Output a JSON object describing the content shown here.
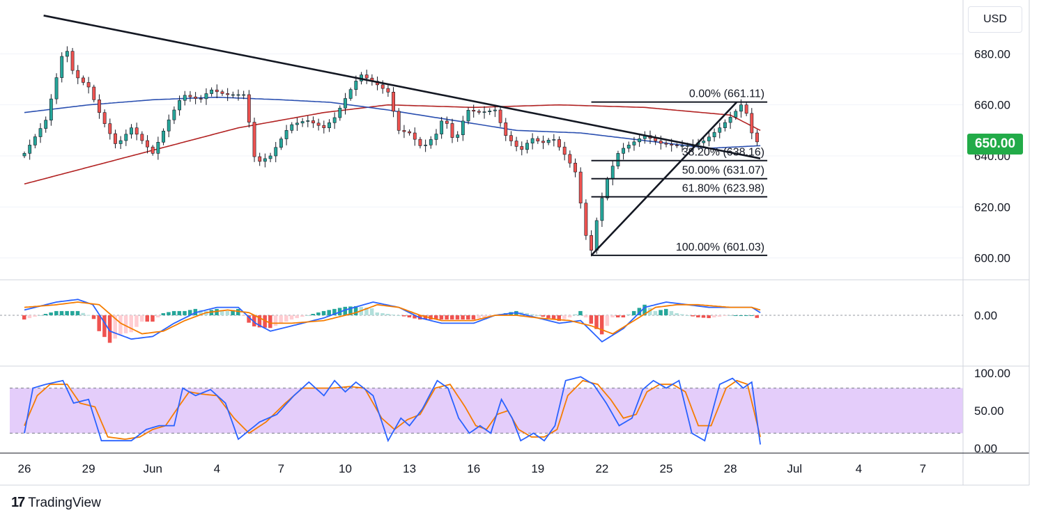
{
  "currency": "USD",
  "last_price_label": "650.00",
  "brand": {
    "logo_text": "17",
    "name": "TradingView"
  },
  "colors": {
    "up": "#26a69a",
    "down": "#ef5350",
    "ma_red": "#b22222",
    "ma_blue": "#2a4fb0",
    "price_tag": "#22ab48",
    "macd_line": "#2962ff",
    "signal_line": "#f57c00",
    "hist_up_strong": "#26a69a",
    "hist_up_weak": "#b2dfdb",
    "hist_down_strong": "#ef5350",
    "hist_down_weak": "#ffcdd2",
    "stoch_band": "#e1c8fa"
  },
  "chart_data": {
    "type": "candlestick",
    "price_axis": {
      "min": 592,
      "max": 700,
      "ticks": [
        600,
        620,
        640,
        660,
        680
      ]
    },
    "price_tick_labels": [
      "600.00",
      "620.00",
      "640.00",
      "660.00",
      "680.00"
    ],
    "x_tick_labels": [
      "26",
      "29",
      "Jun",
      "4",
      "7",
      "10",
      "13",
      "16",
      "19",
      "22",
      "25",
      "28",
      "Jul",
      "4",
      "7"
    ],
    "x_tick_index": [
      0,
      3,
      6,
      9,
      12,
      15,
      18,
      21,
      24,
      27,
      30,
      33,
      36,
      39,
      42
    ],
    "num_days": 37,
    "anchors": [
      [
        0,
        641
      ],
      [
        1,
        654
      ],
      [
        1.9,
        684
      ],
      [
        2.3,
        672
      ],
      [
        3,
        667
      ],
      [
        3.6,
        655
      ],
      [
        4.3,
        644
      ],
      [
        5,
        651
      ],
      [
        6,
        641
      ],
      [
        6.8,
        655
      ],
      [
        7.4,
        664
      ],
      [
        8.2,
        662
      ],
      [
        8.7,
        666
      ],
      [
        9.4,
        664
      ],
      [
        10.3,
        664
      ],
      [
        10.8,
        637
      ],
      [
        11.5,
        640
      ],
      [
        12.4,
        652
      ],
      [
        13.2,
        654
      ],
      [
        14,
        651
      ],
      [
        14.5,
        655
      ],
      [
        15.1,
        664
      ],
      [
        15.7,
        672
      ],
      [
        16.3,
        669
      ],
      [
        17,
        665
      ],
      [
        17.5,
        650
      ],
      [
        18,
        649
      ],
      [
        18.6,
        643
      ],
      [
        19.3,
        649
      ],
      [
        19.6,
        656
      ],
      [
        20.1,
        645
      ],
      [
        20.7,
        658
      ],
      [
        21.3,
        657
      ],
      [
        22,
        658
      ],
      [
        22.5,
        648
      ],
      [
        23.2,
        642
      ],
      [
        23.7,
        647
      ],
      [
        24.2,
        645
      ],
      [
        24.7,
        647
      ],
      [
        25.3,
        640
      ],
      [
        25.8,
        633
      ],
      [
        26.2,
        610
      ],
      [
        26.5,
        603
      ],
      [
        26.8,
        617
      ],
      [
        27.2,
        630
      ],
      [
        27.8,
        642
      ],
      [
        28.2,
        644
      ],
      [
        29,
        648
      ],
      [
        29.7,
        645
      ],
      [
        30.4,
        644
      ],
      [
        31.1,
        644
      ],
      [
        31.8,
        646
      ],
      [
        32.5,
        651
      ],
      [
        33.1,
        656
      ],
      [
        33.5,
        660
      ],
      [
        33.8,
        656
      ],
      [
        34,
        649
      ],
      [
        34.2,
        644
      ],
      [
        34.4,
        650
      ]
    ],
    "moving_averages": [
      {
        "name": "MA red",
        "color": "#b22222",
        "points": [
          [
            0,
            629
          ],
          [
            5,
            640
          ],
          [
            10,
            651
          ],
          [
            14,
            657
          ],
          [
            17,
            660
          ],
          [
            21,
            659
          ],
          [
            25,
            660
          ],
          [
            29,
            659
          ],
          [
            33,
            656
          ],
          [
            34.4,
            650
          ]
        ]
      },
      {
        "name": "MA blue",
        "color": "#2a4fb0",
        "points": [
          [
            0,
            657
          ],
          [
            3,
            660
          ],
          [
            6,
            662
          ],
          [
            9,
            663
          ],
          [
            12,
            662
          ],
          [
            14.3,
            661
          ],
          [
            17,
            658
          ],
          [
            20,
            654
          ],
          [
            23,
            650
          ],
          [
            26,
            649
          ],
          [
            29,
            646
          ],
          [
            32,
            643
          ],
          [
            34.4,
            644
          ]
        ]
      }
    ],
    "trendlines": [
      {
        "name": "descending trendline",
        "from": [
          0.9,
          695
        ],
        "to": [
          34.4,
          639
        ]
      },
      {
        "name": "ascending trendline",
        "from": [
          26.5,
          601.03
        ],
        "to": [
          33.3,
          661.11
        ]
      }
    ],
    "fibonacci": {
      "x_start": 26.5,
      "x_end": 34.4,
      "levels": [
        {
          "ratio_label": "0.00%",
          "value_label": "(661.11)",
          "price": 661.11
        },
        {
          "ratio_label": "38.20%",
          "value_label": "(638.16)",
          "price": 638.16
        },
        {
          "ratio_label": "50.00%",
          "value_label": "(631.07)",
          "price": 631.07
        },
        {
          "ratio_label": "61.80%",
          "value_label": "(623.98)",
          "price": 623.98
        },
        {
          "ratio_label": "100.00%",
          "value_label": "(601.03)",
          "price": 601.03
        }
      ]
    },
    "macd": {
      "zero_label": "0.00",
      "macd_anchors": [
        [
          0,
          2
        ],
        [
          1.5,
          5
        ],
        [
          2.5,
          6
        ],
        [
          3.2,
          4
        ],
        [
          4,
          -6
        ],
        [
          5,
          -9
        ],
        [
          6,
          -8
        ],
        [
          7,
          -3
        ],
        [
          8,
          1
        ],
        [
          9,
          3
        ],
        [
          10,
          3
        ],
        [
          10.8,
          -3
        ],
        [
          11.5,
          -6
        ],
        [
          12.5,
          -4
        ],
        [
          14,
          -1
        ],
        [
          15,
          2
        ],
        [
          16.3,
          5
        ],
        [
          17.5,
          3
        ],
        [
          18.5,
          -1
        ],
        [
          19.5,
          -3
        ],
        [
          21,
          -3
        ],
        [
          22,
          0
        ],
        [
          23,
          1
        ],
        [
          24,
          -1
        ],
        [
          25,
          -3
        ],
        [
          26,
          -2
        ],
        [
          27,
          -10
        ],
        [
          28,
          -5
        ],
        [
          29,
          3
        ],
        [
          30,
          5
        ],
        [
          31,
          4
        ],
        [
          32,
          3
        ],
        [
          33,
          3
        ],
        [
          34,
          3
        ],
        [
          34.4,
          1
        ]
      ],
      "signal_anchors": [
        [
          0,
          3
        ],
        [
          1.5,
          4
        ],
        [
          2.5,
          5
        ],
        [
          3.5,
          4
        ],
        [
          4.5,
          -3
        ],
        [
          5.5,
          -7
        ],
        [
          6.5,
          -6
        ],
        [
          7.5,
          -2
        ],
        [
          8.5,
          1
        ],
        [
          9.5,
          2
        ],
        [
          10.5,
          1
        ],
        [
          11.5,
          -3
        ],
        [
          12.5,
          -3
        ],
        [
          14,
          -2
        ],
        [
          15.5,
          1
        ],
        [
          16.5,
          4
        ],
        [
          17.5,
          3
        ],
        [
          18.5,
          0
        ],
        [
          19.5,
          -2
        ],
        [
          21,
          -2
        ],
        [
          22,
          0
        ],
        [
          23,
          0
        ],
        [
          24,
          -1
        ],
        [
          25.5,
          -2
        ],
        [
          26.5,
          -4
        ],
        [
          27.5,
          -7
        ],
        [
          28.5,
          -2
        ],
        [
          29.5,
          3
        ],
        [
          30.5,
          4
        ],
        [
          31.5,
          4
        ],
        [
          33,
          3
        ],
        [
          34,
          3
        ],
        [
          34.4,
          2
        ]
      ]
    },
    "stochastic": {
      "tick_labels": [
        "100.00",
        "50.00",
        "0.00"
      ],
      "ticks": [
        100,
        50,
        0
      ],
      "upper_band": 80,
      "lower_band": 20,
      "k_anchors": [
        [
          0,
          20
        ],
        [
          0.4,
          80
        ],
        [
          1,
          85
        ],
        [
          1.8,
          90
        ],
        [
          2.3,
          60
        ],
        [
          3,
          65
        ],
        [
          3.6,
          10
        ],
        [
          4.5,
          10
        ],
        [
          5,
          10
        ],
        [
          5.7,
          25
        ],
        [
          6.3,
          30
        ],
        [
          7,
          30
        ],
        [
          7.4,
          80
        ],
        [
          8,
          70
        ],
        [
          8.7,
          78
        ],
        [
          9.4,
          60
        ],
        [
          10,
          12
        ],
        [
          11,
          35
        ],
        [
          11.8,
          45
        ],
        [
          12.6,
          70
        ],
        [
          13.3,
          88
        ],
        [
          14,
          70
        ],
        [
          14.5,
          90
        ],
        [
          15,
          75
        ],
        [
          15.5,
          88
        ],
        [
          16.3,
          70
        ],
        [
          17,
          10
        ],
        [
          17.6,
          40
        ],
        [
          18,
          30
        ],
        [
          18.6,
          52
        ],
        [
          19.3,
          90
        ],
        [
          19.8,
          80
        ],
        [
          20.3,
          40
        ],
        [
          20.8,
          20
        ],
        [
          21.3,
          30
        ],
        [
          21.8,
          20
        ],
        [
          22.3,
          65
        ],
        [
          22.8,
          40
        ],
        [
          23.2,
          10
        ],
        [
          23.8,
          20
        ],
        [
          24.3,
          10
        ],
        [
          24.8,
          30
        ],
        [
          25.3,
          90
        ],
        [
          26,
          95
        ],
        [
          26.6,
          85
        ],
        [
          27.2,
          60
        ],
        [
          27.8,
          30
        ],
        [
          28.4,
          40
        ],
        [
          28.9,
          78
        ],
        [
          29.4,
          90
        ],
        [
          30,
          80
        ],
        [
          30.6,
          90
        ],
        [
          31.2,
          20
        ],
        [
          31.8,
          10
        ],
        [
          32.5,
          85
        ],
        [
          33.1,
          93
        ],
        [
          33.6,
          80
        ],
        [
          34,
          88
        ],
        [
          34.4,
          5
        ]
      ],
      "d_anchors": [
        [
          0,
          30
        ],
        [
          0.6,
          70
        ],
        [
          1.2,
          85
        ],
        [
          2,
          85
        ],
        [
          2.6,
          60
        ],
        [
          3.3,
          55
        ],
        [
          3.9,
          15
        ],
        [
          4.7,
          12
        ],
        [
          5.4,
          15
        ],
        [
          6,
          25
        ],
        [
          6.6,
          30
        ],
        [
          7.2,
          55
        ],
        [
          7.7,
          75
        ],
        [
          8.3,
          72
        ],
        [
          9,
          70
        ],
        [
          9.8,
          40
        ],
        [
          10.5,
          20
        ],
        [
          11.3,
          35
        ],
        [
          12.2,
          60
        ],
        [
          13,
          80
        ],
        [
          13.8,
          80
        ],
        [
          14.4,
          80
        ],
        [
          15.2,
          82
        ],
        [
          15.9,
          80
        ],
        [
          16.7,
          40
        ],
        [
          17.3,
          25
        ],
        [
          17.9,
          38
        ],
        [
          18.5,
          45
        ],
        [
          19.2,
          80
        ],
        [
          19.9,
          85
        ],
        [
          20.6,
          55
        ],
        [
          21.1,
          30
        ],
        [
          21.6,
          25
        ],
        [
          22.1,
          45
        ],
        [
          22.6,
          50
        ],
        [
          23.1,
          25
        ],
        [
          23.7,
          15
        ],
        [
          24.3,
          15
        ],
        [
          24.9,
          25
        ],
        [
          25.4,
          70
        ],
        [
          26.1,
          90
        ],
        [
          26.8,
          85
        ],
        [
          27.4,
          65
        ],
        [
          28,
          40
        ],
        [
          28.6,
          45
        ],
        [
          29.1,
          75
        ],
        [
          29.7,
          85
        ],
        [
          30.3,
          85
        ],
        [
          30.9,
          75
        ],
        [
          31.5,
          30
        ],
        [
          32.1,
          30
        ],
        [
          32.8,
          80
        ],
        [
          33.3,
          90
        ],
        [
          33.8,
          85
        ],
        [
          34.4,
          15
        ]
      ]
    }
  }
}
